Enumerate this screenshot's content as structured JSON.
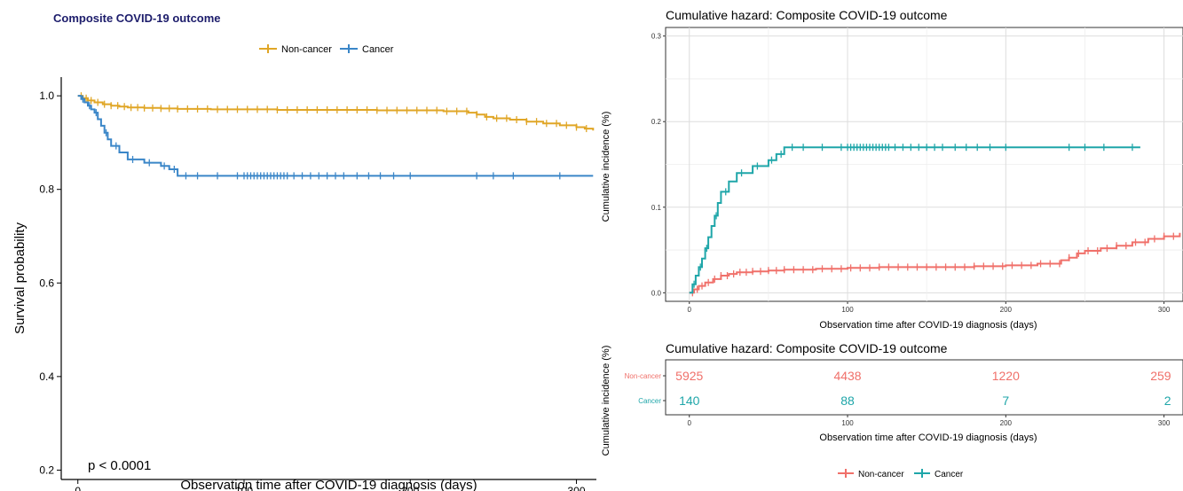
{
  "chart_data": [
    {
      "type": "line",
      "subtype": "kaplan-meier",
      "title": "Composite COVID-19 outcome",
      "xlabel": "Observation time after COVID-19 diagnosis (days)",
      "ylabel": "Survival probability",
      "xlim": [
        -10,
        312
      ],
      "ylim": [
        0.18,
        1.04
      ],
      "xticks": [
        "0",
        "100",
        "200",
        "300"
      ],
      "xtick_values": [
        0,
        100,
        200,
        300
      ],
      "yticks": [
        "0.2",
        "0.4",
        "0.6",
        "0.8",
        "1.0"
      ],
      "ytick_values": [
        0.2,
        0.4,
        0.6,
        0.8,
        1.0
      ],
      "grid": false,
      "legend_position": "top",
      "annotation": "p < 0.0001",
      "series": [
        {
          "name": "Non-cancer",
          "color": "#E0A626",
          "x": [
            0,
            3,
            6,
            10,
            15,
            20,
            25,
            30,
            40,
            50,
            60,
            80,
            100,
            120,
            150,
            180,
            200,
            220,
            235,
            240,
            245,
            250,
            260,
            270,
            280,
            290,
            300,
            305,
            310
          ],
          "y": [
            1.0,
            0.995,
            0.99,
            0.986,
            0.982,
            0.979,
            0.977,
            0.975,
            0.974,
            0.973,
            0.972,
            0.971,
            0.971,
            0.97,
            0.97,
            0.969,
            0.969,
            0.967,
            0.964,
            0.96,
            0.955,
            0.952,
            0.949,
            0.945,
            0.941,
            0.937,
            0.933,
            0.93,
            0.926
          ],
          "censor_x": [
            2,
            5,
            8,
            12,
            16,
            20,
            24,
            28,
            32,
            36,
            40,
            45,
            50,
            55,
            60,
            66,
            72,
            78,
            84,
            90,
            96,
            102,
            108,
            114,
            120,
            126,
            132,
            138,
            144,
            150,
            156,
            162,
            168,
            174,
            180,
            186,
            192,
            198,
            204,
            210,
            216,
            222,
            228,
            234,
            240,
            246,
            252,
            258,
            264,
            270,
            276,
            282,
            288,
            294,
            300,
            306
          ]
        },
        {
          "name": "Cancer",
          "color": "#3A86C8",
          "x": [
            0,
            2,
            4,
            6,
            8,
            10,
            12,
            14,
            16,
            18,
            20,
            25,
            30,
            40,
            50,
            55,
            60,
            310
          ],
          "y": [
            1.0,
            0.993,
            0.986,
            0.979,
            0.971,
            0.964,
            0.95,
            0.936,
            0.921,
            0.907,
            0.893,
            0.879,
            0.864,
            0.857,
            0.85,
            0.843,
            0.829,
            0.829
          ],
          "censor_x": [
            3,
            7,
            11,
            17,
            23,
            33,
            43,
            52,
            58,
            65,
            72,
            84,
            96,
            100,
            102,
            104,
            106,
            108,
            110,
            112,
            114,
            116,
            118,
            120,
            122,
            124,
            126,
            130,
            135,
            140,
            145,
            150,
            155,
            160,
            168,
            175,
            182,
            190,
            200,
            240,
            250,
            262,
            290
          ]
        }
      ]
    },
    {
      "type": "line",
      "subtype": "cumulative-hazard",
      "title": "Cumulative hazard: Composite COVID-19 outcome",
      "xlabel": "Observation time after COVID-19 diagnosis (days)",
      "ylabel": "Cumulative incidence (%)",
      "xlim": [
        -15,
        312
      ],
      "ylim": [
        -0.01,
        0.31
      ],
      "xticks": [
        "0",
        "100",
        "200",
        "300"
      ],
      "xtick_values": [
        0,
        100,
        200,
        300
      ],
      "yticks": [
        "0.0",
        "0.1",
        "0.2",
        "0.3"
      ],
      "ytick_values": [
        0.0,
        0.1,
        0.2,
        0.3
      ],
      "grid": true,
      "legend_position": "bottom",
      "series": [
        {
          "name": "Non-cancer",
          "color": "#F0706A",
          "x": [
            0,
            3,
            6,
            10,
            15,
            20,
            25,
            30,
            40,
            50,
            60,
            80,
            100,
            120,
            150,
            180,
            200,
            220,
            235,
            240,
            245,
            250,
            260,
            270,
            280,
            290,
            300,
            310
          ],
          "y": [
            0.0,
            0.004,
            0.008,
            0.012,
            0.016,
            0.02,
            0.022,
            0.024,
            0.025,
            0.026,
            0.027,
            0.028,
            0.029,
            0.03,
            0.03,
            0.031,
            0.032,
            0.034,
            0.038,
            0.041,
            0.046,
            0.049,
            0.052,
            0.055,
            0.059,
            0.063,
            0.066,
            0.07
          ],
          "censor_x": [
            2,
            5,
            8,
            12,
            16,
            20,
            24,
            28,
            32,
            36,
            40,
            45,
            50,
            55,
            60,
            66,
            72,
            78,
            84,
            90,
            96,
            102,
            108,
            114,
            120,
            126,
            132,
            138,
            144,
            150,
            156,
            162,
            168,
            174,
            180,
            186,
            192,
            198,
            204,
            210,
            216,
            222,
            228,
            234,
            240,
            246,
            252,
            258,
            264,
            270,
            276,
            282,
            288,
            294,
            300,
            306
          ]
        },
        {
          "name": "Cancer",
          "color": "#1FA6A9",
          "x": [
            0,
            2,
            4,
            6,
            8,
            10,
            12,
            14,
            16,
            18,
            20,
            25,
            30,
            40,
            50,
            55,
            60,
            285
          ],
          "y": [
            0.0,
            0.01,
            0.02,
            0.03,
            0.04,
            0.052,
            0.065,
            0.078,
            0.09,
            0.105,
            0.118,
            0.13,
            0.14,
            0.148,
            0.155,
            0.162,
            0.17,
            0.17
          ],
          "censor_x": [
            3,
            7,
            11,
            17,
            23,
            33,
            43,
            52,
            58,
            65,
            72,
            84,
            96,
            100,
            102,
            104,
            106,
            108,
            110,
            112,
            114,
            116,
            118,
            120,
            122,
            124,
            126,
            130,
            135,
            140,
            145,
            150,
            155,
            160,
            168,
            175,
            182,
            190,
            200,
            240,
            250,
            262,
            280
          ]
        }
      ]
    },
    {
      "type": "table",
      "subtype": "risk-table",
      "title": "Cumulative hazard: Composite COVID-19 outcome",
      "xlabel": "Observation time after COVID-19 diagnosis (days)",
      "ylabel": "Cumulative incidence (%)",
      "xticks": [
        "0",
        "100",
        "200",
        "300"
      ],
      "xtick_values": [
        0,
        100,
        200,
        300
      ],
      "rows": [
        {
          "name": "Non-cancer",
          "color": "#F0706A",
          "values": [
            5925,
            4438,
            1220,
            259
          ]
        },
        {
          "name": "Cancer",
          "color": "#1FA6A9",
          "values": [
            140,
            88,
            7,
            2
          ]
        }
      ]
    }
  ]
}
